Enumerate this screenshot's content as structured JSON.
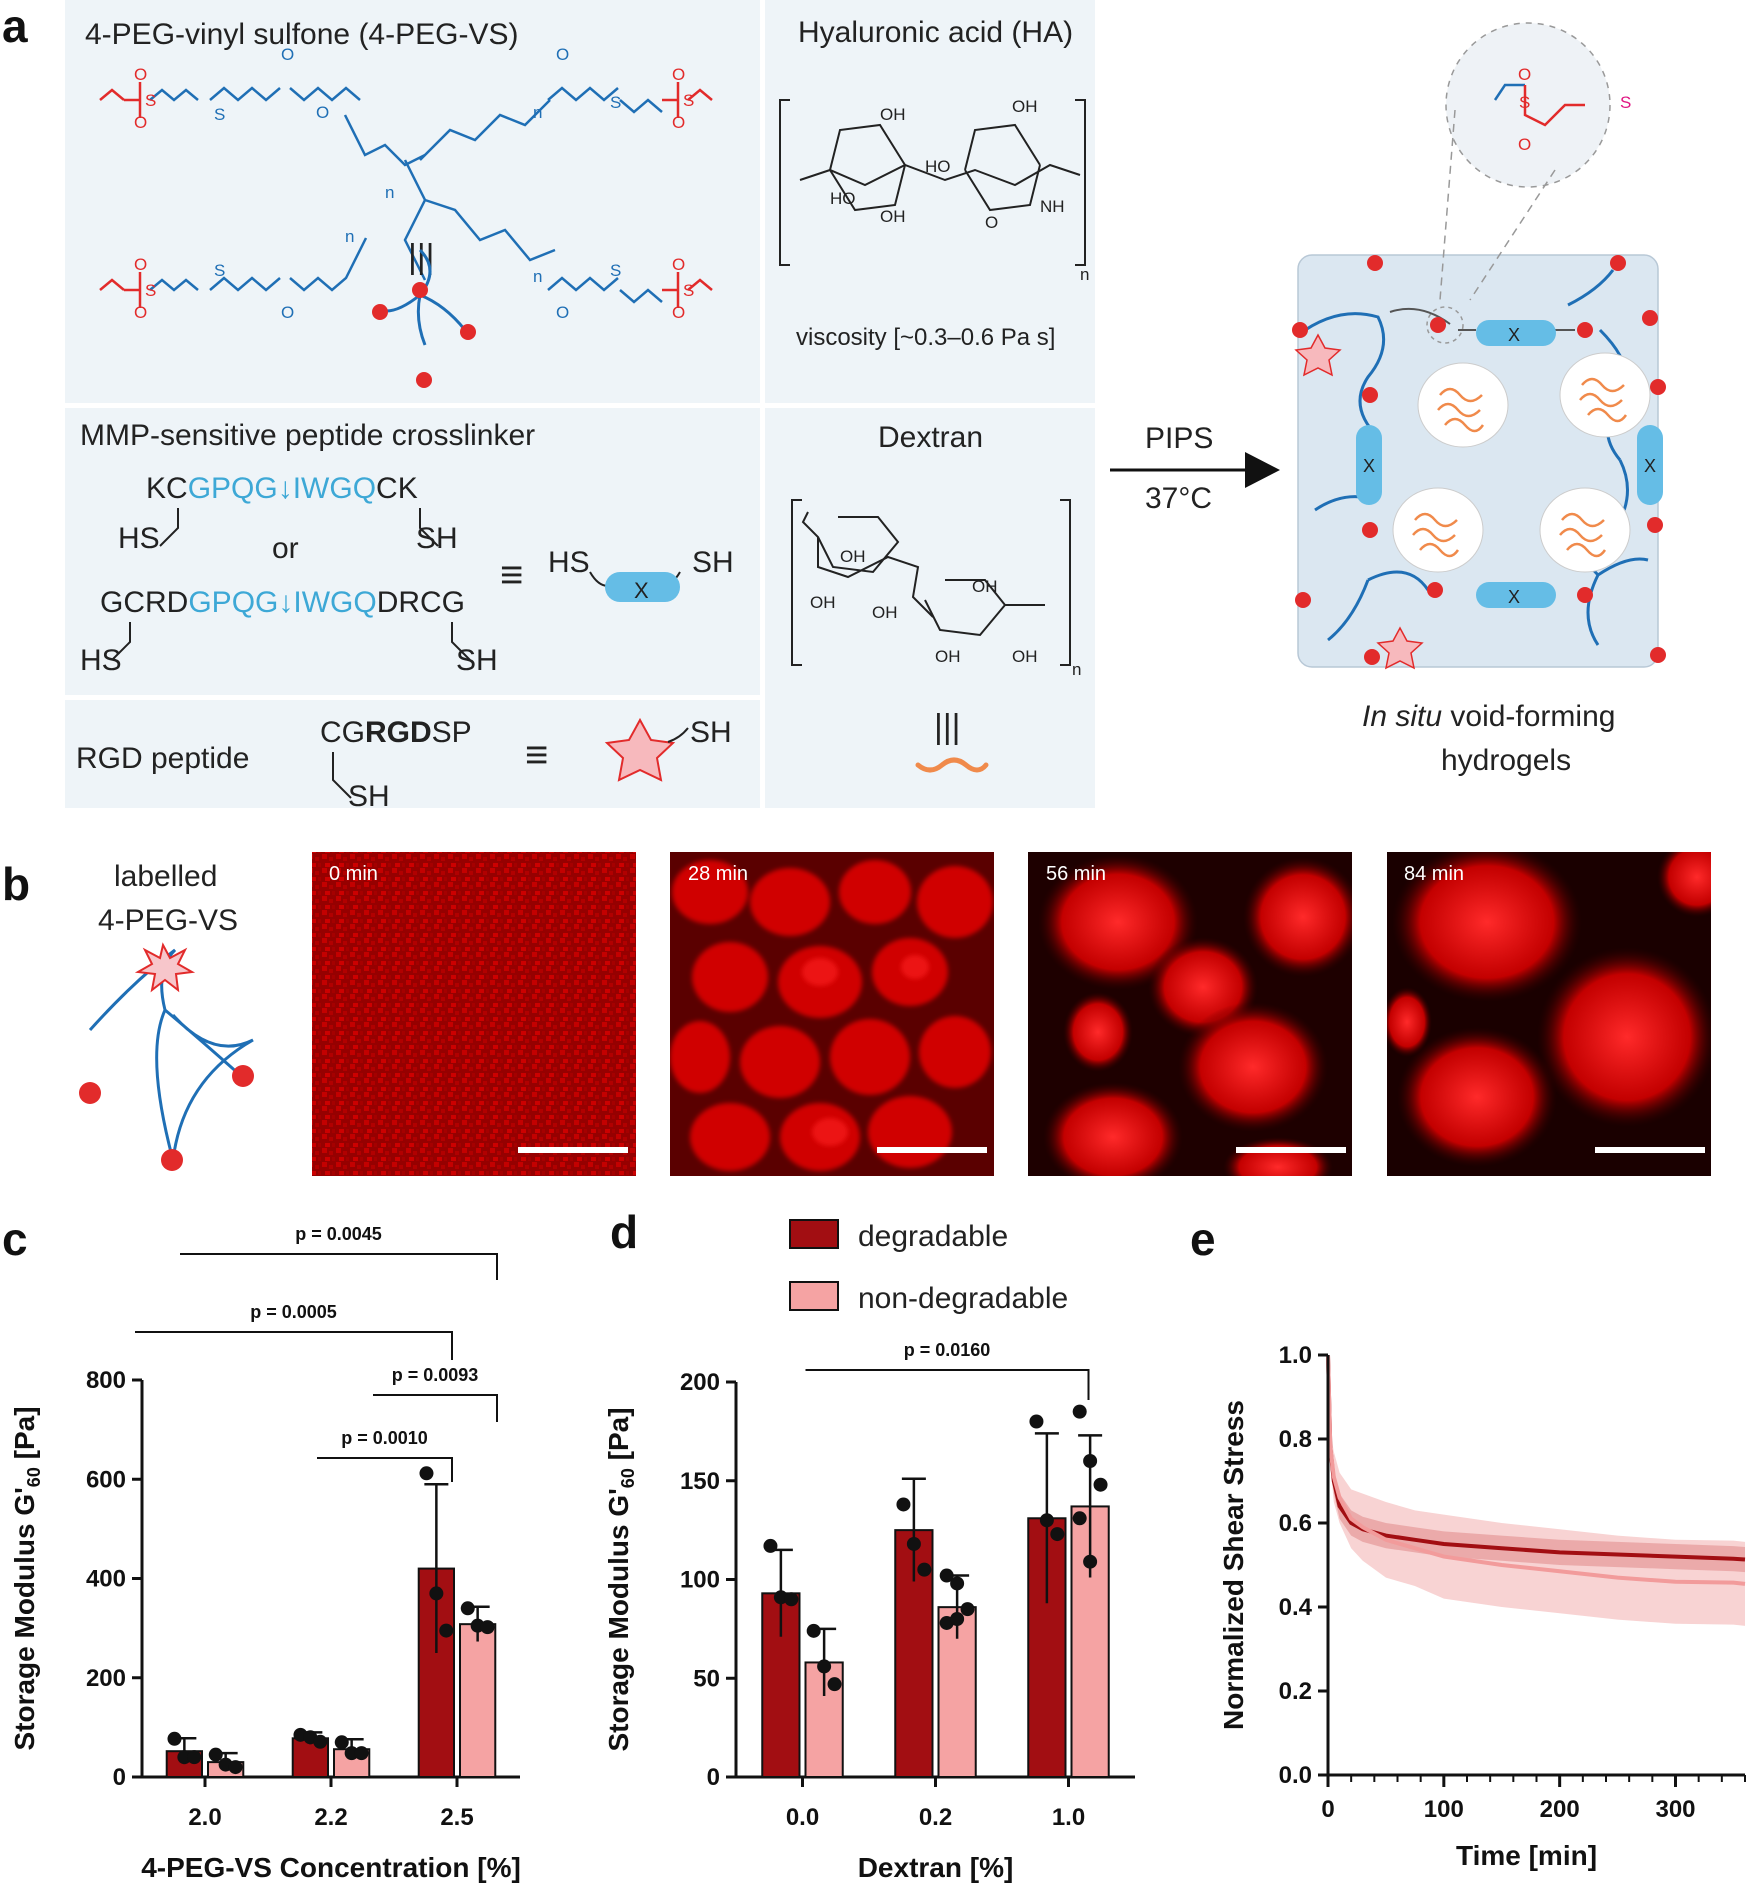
{
  "panels": {
    "a": {
      "letter": "a",
      "peg_title": "4-PEG-vinyl sulfone (4-PEG-VS)",
      "peg_n": "n",
      "ha_title": "Hyaluronic acid (HA)",
      "ha_viscosity": "viscosity [~0.3–0.6 Pa s]",
      "mmp_title": "MMP-sensitive peptide crosslinker",
      "mmp_seq1_pre": "KC",
      "mmp_seq1_mid": "GPQG↓IWGQ",
      "mmp_seq1_post": "CK",
      "mmp_or": "or",
      "mmp_seq2_pre": "GCRD",
      "mmp_seq2_mid": "GPQG↓IWGQ",
      "mmp_seq2_post": "DRCG",
      "hs": "HS",
      "sh": "SH",
      "x": "X",
      "dextran_title": "Dextran",
      "rgd_title": "RGD peptide",
      "rgd_seq_pre": "CG",
      "rgd_seq_bold": "RGD",
      "rgd_seq_post": "SP",
      "equiv": "≡",
      "pips": "PIPS",
      "temp": "37°C",
      "hydrogel_italic": "In situ",
      "hydrogel_line1_rest": " void-forming",
      "hydrogel_line2": "hydrogels"
    },
    "b": {
      "letter": "b",
      "label_line1": "labelled",
      "label_line2": "4-PEG-VS",
      "timepoints": [
        "0 min",
        "28 min",
        "56 min",
        "84 min"
      ]
    },
    "c": {
      "letter": "c"
    },
    "d": {
      "letter": "d"
    },
    "e": {
      "letter": "e"
    }
  },
  "colors": {
    "degradable": "#a20e12",
    "non_degradable": "#f5a3a3",
    "peg_blue": "#1f6fb5",
    "vinyl_red": "#e22b2b",
    "thiol_pink": "#e01582",
    "peptide_cyan": "#3da8d6",
    "dextran_orange": "#f08a4b"
  },
  "chart_data": [
    {
      "id": "c",
      "type": "bar",
      "xlabel": "4-PEG-VS Concentration [%]",
      "ylabel": "Storage Modulus G'60 [Pa]",
      "ylim": [
        0,
        800
      ],
      "yticks": [
        0,
        200,
        400,
        600,
        800
      ],
      "categories": [
        "2.0",
        "2.2",
        "2.5"
      ],
      "series": [
        {
          "name": "degradable",
          "values": [
            52,
            78,
            420
          ],
          "error": [
            26,
            12,
            170
          ],
          "points": [
            [
              77,
              40,
              40
            ],
            [
              85,
              80,
              71
            ],
            [
              612,
              370,
              295
            ]
          ]
        },
        {
          "name": "non-degradable",
          "values": [
            30,
            56,
            308
          ],
          "error": [
            18,
            20,
            35
          ],
          "points": [
            [
              45,
              25,
              20
            ],
            [
              70,
              48,
              48
            ],
            [
              340,
              305,
              302
            ]
          ]
        }
      ],
      "significance": [
        {
          "from": 0,
          "to": 2,
          "label": "p = 0.0005"
        },
        {
          "from": 0,
          "to": 2,
          "label": "p = 0.0045"
        },
        {
          "from": 1,
          "to": 2,
          "label": "p = 0.0093"
        },
        {
          "from": 1,
          "to": 2,
          "label": "p = 0.0010"
        }
      ]
    },
    {
      "id": "d",
      "type": "bar",
      "xlabel": "Dextran [%]",
      "ylabel": "Storage Modulus G'60 [Pa]",
      "ylim": [
        0,
        200
      ],
      "yticks": [
        0,
        50,
        100,
        150,
        200
      ],
      "categories": [
        "0.0",
        "0.2",
        "1.0"
      ],
      "legend": "top",
      "series": [
        {
          "name": "degradable",
          "values": [
            93,
            125,
            131
          ],
          "error": [
            22,
            26,
            43
          ],
          "points": [
            [
              117,
              91,
              90
            ],
            [
              138,
              118,
              105
            ],
            [
              180,
              130,
              123
            ]
          ]
        },
        {
          "name": "non-degradable",
          "values": [
            58,
            86,
            137
          ],
          "error": [
            17,
            16,
            36
          ],
          "points": [
            [
              74,
              56,
              47
            ],
            [
              102,
              98,
              85,
              78,
              80
            ],
            [
              185,
              160,
              148,
              131,
              109
            ]
          ]
        }
      ],
      "significance": [
        {
          "from": 0,
          "to": 2,
          "label": "p = 0.0160"
        }
      ]
    },
    {
      "id": "e",
      "type": "line",
      "xlabel": "Time [min]",
      "ylabel": "Normalized Shear Stress",
      "xlim": [
        0,
        360
      ],
      "ylim": [
        0,
        1.0
      ],
      "xticks": [
        0,
        100,
        200,
        300
      ],
      "yticks": [
        "0.0",
        "0.2",
        "0.4",
        "0.6",
        "0.8",
        "1.0"
      ],
      "series": [
        {
          "name": "degradable",
          "x": [
            0,
            2,
            5,
            10,
            20,
            30,
            50,
            75,
            100,
            150,
            200,
            250,
            300,
            350,
            360
          ],
          "y": [
            1.0,
            0.78,
            0.7,
            0.64,
            0.6,
            0.585,
            0.57,
            0.56,
            0.55,
            0.54,
            0.53,
            0.525,
            0.52,
            0.515,
            0.513
          ],
          "sd": [
            0,
            0.03,
            0.03,
            0.03,
            0.03,
            0.03,
            0.03,
            0.03,
            0.03,
            0.03,
            0.03,
            0.03,
            0.03,
            0.03,
            0.03
          ]
        },
        {
          "name": "non-degradable",
          "x": [
            0,
            2,
            5,
            10,
            20,
            30,
            50,
            75,
            100,
            150,
            200,
            250,
            300,
            350,
            360
          ],
          "y": [
            1.0,
            0.78,
            0.71,
            0.66,
            0.61,
            0.59,
            0.56,
            0.54,
            0.52,
            0.5,
            0.485,
            0.47,
            0.46,
            0.458,
            0.455
          ],
          "sd": [
            0,
            0.04,
            0.06,
            0.06,
            0.07,
            0.08,
            0.09,
            0.09,
            0.1,
            0.1,
            0.1,
            0.1,
            0.1,
            0.1,
            0.1
          ]
        }
      ]
    }
  ]
}
